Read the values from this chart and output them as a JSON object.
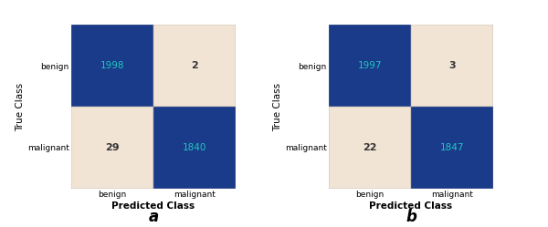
{
  "charts": [
    {
      "label": "a",
      "matrix": [
        [
          1998,
          2
        ],
        [
          29,
          1840
        ]
      ],
      "classes": [
        "benign",
        "malignant"
      ]
    },
    {
      "label": "b",
      "matrix": [
        [
          1997,
          3
        ],
        [
          22,
          1847
        ]
      ],
      "classes": [
        "benign",
        "malignant"
      ]
    }
  ],
  "dark_blue": "#1a3a8a",
  "light_bg": "#f2e4d5",
  "text_dark": "#20c8c0",
  "text_light": "#333333",
  "xlabel": "Predicted Class",
  "ylabel": "True Class",
  "label_fontsize": 7.5,
  "tick_fontsize": 6.5,
  "annot_fontsize_diag": 7.5,
  "annot_fontsize_off": 8,
  "sublabel_fontsize": 12,
  "background": "#ffffff",
  "spine_color": "#999999"
}
